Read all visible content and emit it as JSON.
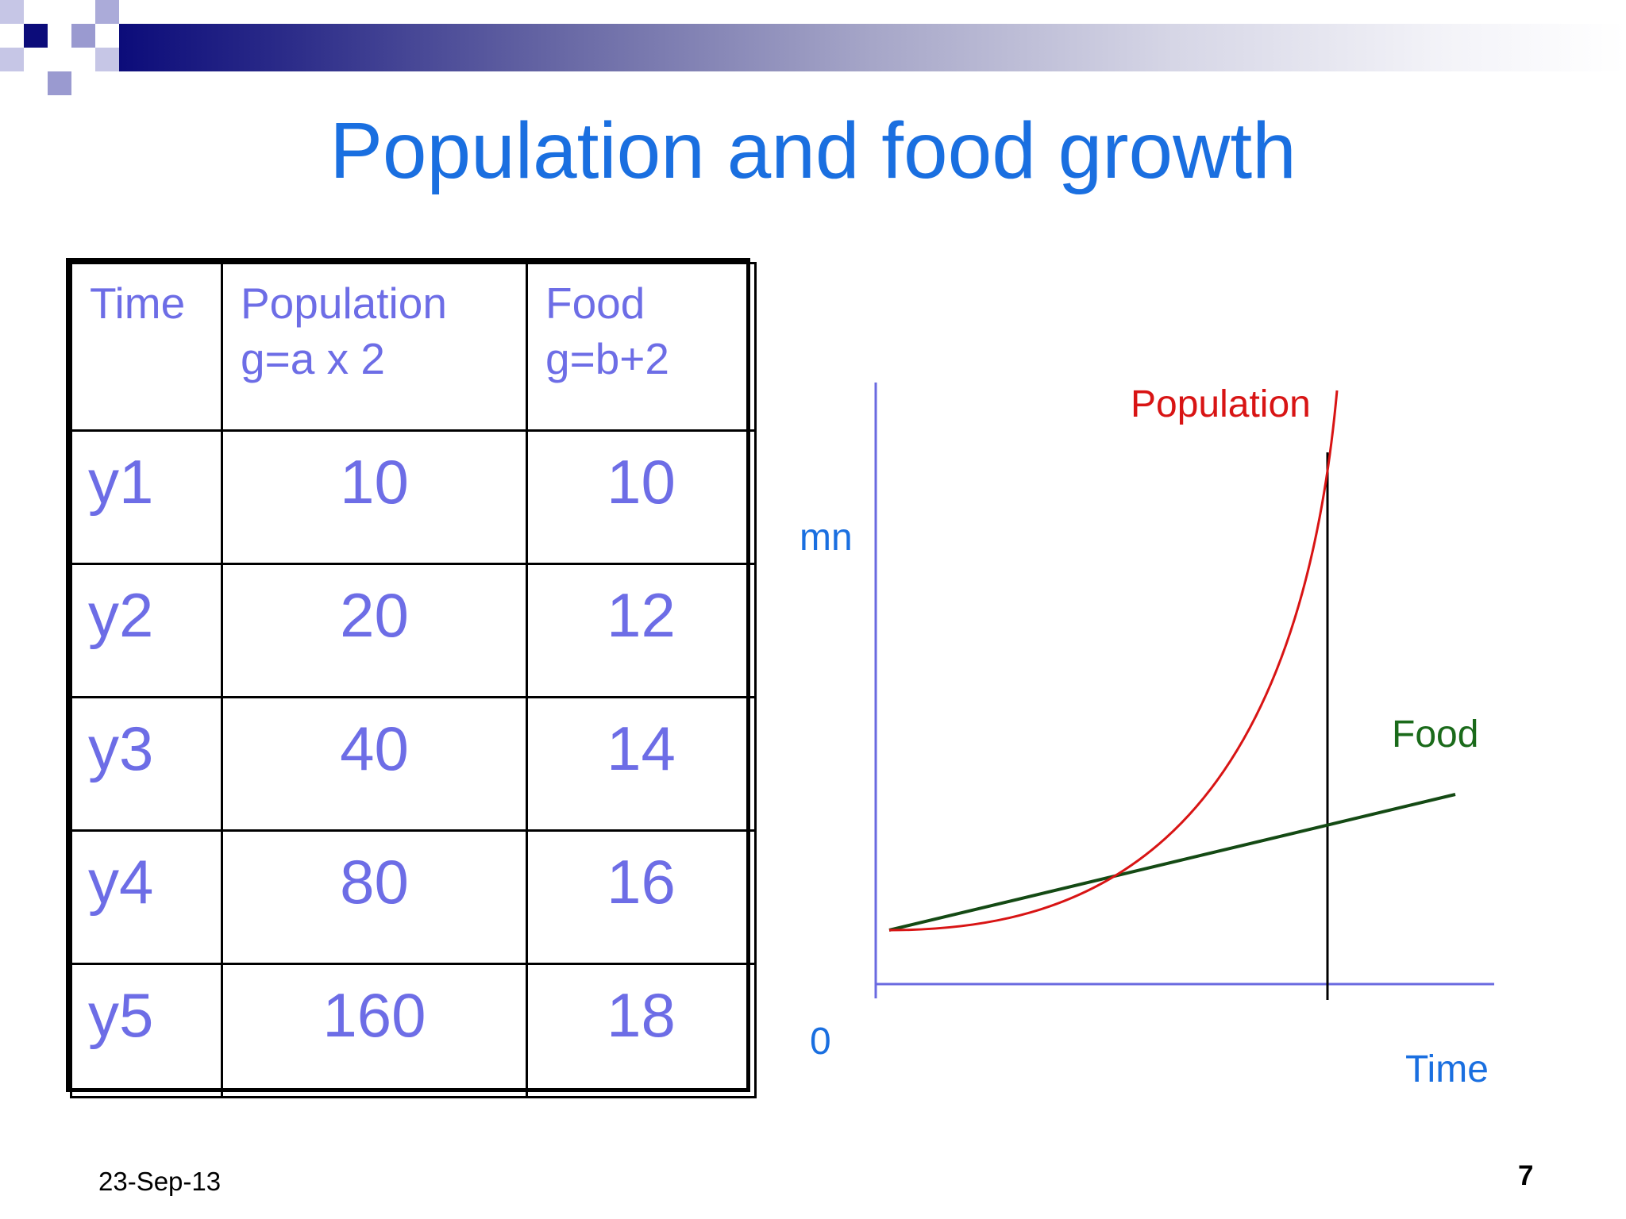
{
  "slide": {
    "title": "Population and food growth",
    "date": "23-Sep-13",
    "page_number": "7"
  },
  "table": {
    "headers": [
      {
        "line1": "Time",
        "line2": ""
      },
      {
        "line1": "Population",
        "line2": "g=a x 2"
      },
      {
        "line1": "Food",
        "line2": "g=b+2"
      }
    ],
    "rows": [
      {
        "time": "y1",
        "population": "10",
        "food": "10"
      },
      {
        "time": "y2",
        "population": "20",
        "food": "12"
      },
      {
        "time": "y3",
        "population": "40",
        "food": "14"
      },
      {
        "time": "y4",
        "population": "80",
        "food": "16"
      },
      {
        "time": "y5",
        "population": "160",
        "food": "18"
      }
    ]
  },
  "graph": {
    "y_axis_label": "mn",
    "origin_label": "0",
    "x_axis_label": "Time",
    "population_label": "Population",
    "food_label": "Food"
  },
  "colors": {
    "title": "#1a6fe0",
    "table_text": "#6d6de6",
    "population_curve": "#d81414",
    "food_line": "#144a14",
    "axes": "#6a6ae0",
    "axis_labels": "#1a6fe0"
  }
}
